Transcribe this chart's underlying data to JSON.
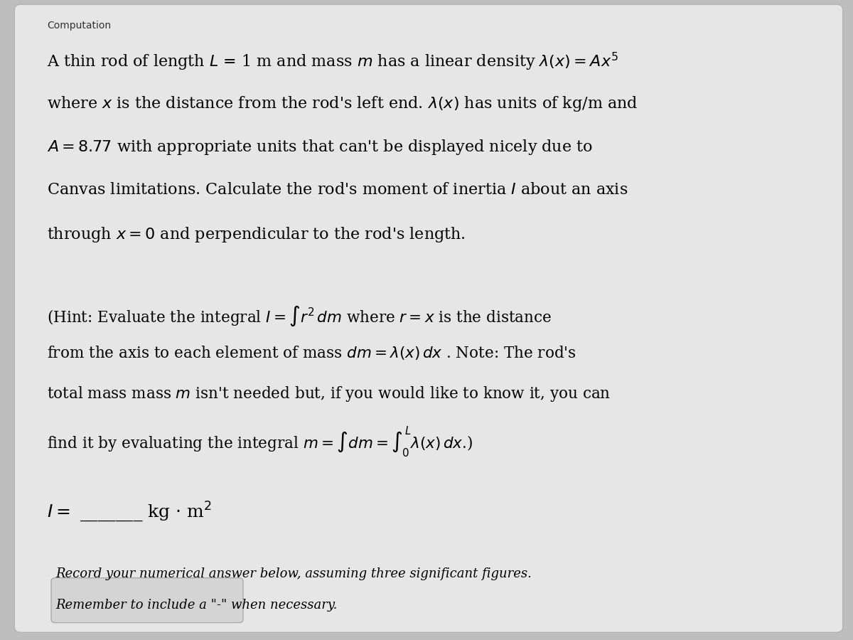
{
  "title": "Computation",
  "bg_color": "#bebebe",
  "card_color": "#e6e6e6",
  "title_fontsize": 10,
  "body_fontsize": 16,
  "hint_fontsize": 15.5,
  "answer_fontsize": 18,
  "small_fontsize": 13,
  "input_box_color": "#d4d4d4",
  "line1": "A thin rod of length $L$ = 1 m and mass $m$ has a linear density $\\lambda(x) = Ax^5$",
  "line2": "where $x$ is the distance from the rod's left end. $\\lambda(x)$ has units of kg/m and",
  "line3": "$A = 8.77$ with appropriate units that can't be displayed nicely due to",
  "line4": "Canvas limitations. Calculate the rod's moment of inertia $I$ about an axis",
  "line5": "through $x = 0$ and perpendicular to the rod's length.",
  "hint_line1": "(Hint: Evaluate the integral $I = \\int r^2\\, dm$ where $r = x$ is the distance",
  "hint_line2": "from the axis to each element of mass $dm = \\lambda(x)\\, dx$ . Note: The rod's",
  "hint_line3": "total mass mass $m$ isn't needed but, if you would like to know it, you can",
  "hint_line4": "find it by evaluating the integral $m = \\int dm = \\int_0^L \\lambda(x)\\, dx$.)",
  "answer_label": "$I =$ _______ kg $\\cdot$ m$^2$",
  "record_line1": "Record your numerical answer below, assuming three significant figures.",
  "record_line2": "Remember to include a \"-\" when necessary."
}
